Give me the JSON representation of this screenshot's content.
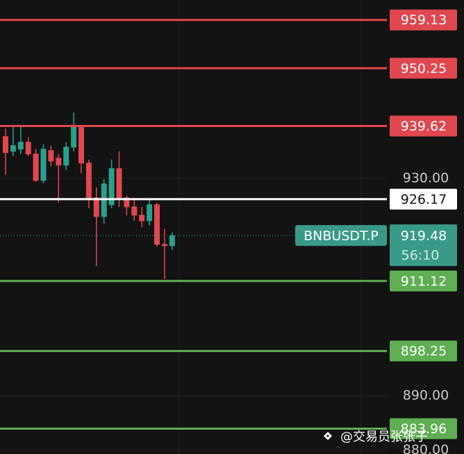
{
  "chart_data": {
    "type": "candlestick",
    "symbol": "BNBUSDT.P",
    "countdown": "56:10",
    "watermark": "@交易员张张子",
    "categories": [
      null,
      null,
      null,
      null,
      null,
      null,
      null,
      null,
      null,
      null,
      null,
      null,
      null,
      null,
      null,
      null,
      null,
      null,
      null,
      null,
      null,
      null,
      null
    ],
    "open": [
      937.67,
      934.98,
      935.37,
      936.65,
      934.47,
      929.62,
      935.11,
      933.71,
      932.43,
      935.75,
      939.46,
      932.81,
      926.42,
      922.97,
      925.14,
      931.79,
      926.42,
      924.76,
      923.23,
      922.2,
      925.14,
      917.86,
      917.6
    ],
    "close": [
      934.73,
      936.01,
      936.65,
      934.47,
      929.62,
      935.37,
      933.19,
      932.43,
      935.75,
      939.46,
      932.81,
      926.42,
      922.97,
      928.98,
      931.79,
      926.42,
      924.76,
      923.23,
      922.2,
      925.14,
      917.86,
      917.6,
      919.48
    ],
    "high": [
      939.2,
      939.46,
      939.59,
      937.54,
      935.37,
      936.26,
      935.98,
      934.47,
      936.65,
      942.14,
      939.84,
      933.45,
      928.34,
      929.87,
      933.45,
      934.98,
      926.81,
      926.42,
      924.76,
      926.04,
      925.53,
      920.67,
      920.03
    ],
    "low": [
      930.64,
      934.09,
      934.47,
      934.09,
      929.36,
      929.11,
      932.17,
      925.53,
      931.53,
      934.98,
      930.89,
      924.51,
      913.9,
      921.69,
      924.51,
      924.76,
      923.23,
      922.2,
      921.05,
      921.31,
      917.48,
      911.47,
      916.84
    ],
    "up_color": "#2aa18c",
    "down_color": "#e0474f",
    "levels": [
      {
        "value": 959.13,
        "color": "#e0474f"
      },
      {
        "value": 950.25,
        "color": "#e0474f"
      },
      {
        "value": 939.62,
        "color": "#e0474f"
      },
      {
        "value": 926.17,
        "color": "#ffffff"
      },
      {
        "value": 911.12,
        "color": "#5fae53"
      },
      {
        "value": 898.25,
        "color": "#5fae53"
      },
      {
        "value": 883.96,
        "color": "#5fae53"
      }
    ],
    "ylim": [
      879.3,
      962.8
    ],
    "yticks": [
      {
        "value": 930,
        "label": "930.00"
      },
      {
        "value": 890,
        "label": "890.00"
      },
      {
        "value": 880,
        "label": "880.00"
      }
    ],
    "grid": true
  }
}
